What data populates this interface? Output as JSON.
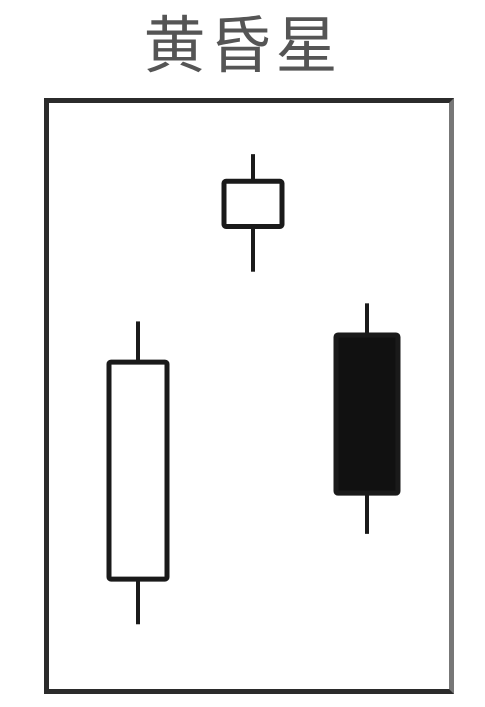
{
  "title": "黄昏星",
  "colors": {
    "bullish_fill": "#ffffff",
    "bearish_fill": "#111111",
    "stroke": "#1a1a1a",
    "title": "#555555",
    "frame": "#2b2b2b"
  },
  "chart_data": {
    "type": "candlestick",
    "candles": [
      {
        "open": 3.4,
        "close": 8.2,
        "high": 9.1,
        "low": 2.4,
        "direction": "bullish"
      },
      {
        "open": 11.2,
        "close": 12.2,
        "high": 12.8,
        "low": 10.2,
        "direction": "bullish"
      },
      {
        "open": 8.8,
        "close": 5.3,
        "high": 9.5,
        "low": 4.4,
        "direction": "bearish"
      }
    ],
    "ylim": [
      1.3,
      13.6
    ],
    "grid": false,
    "legend": false
  }
}
